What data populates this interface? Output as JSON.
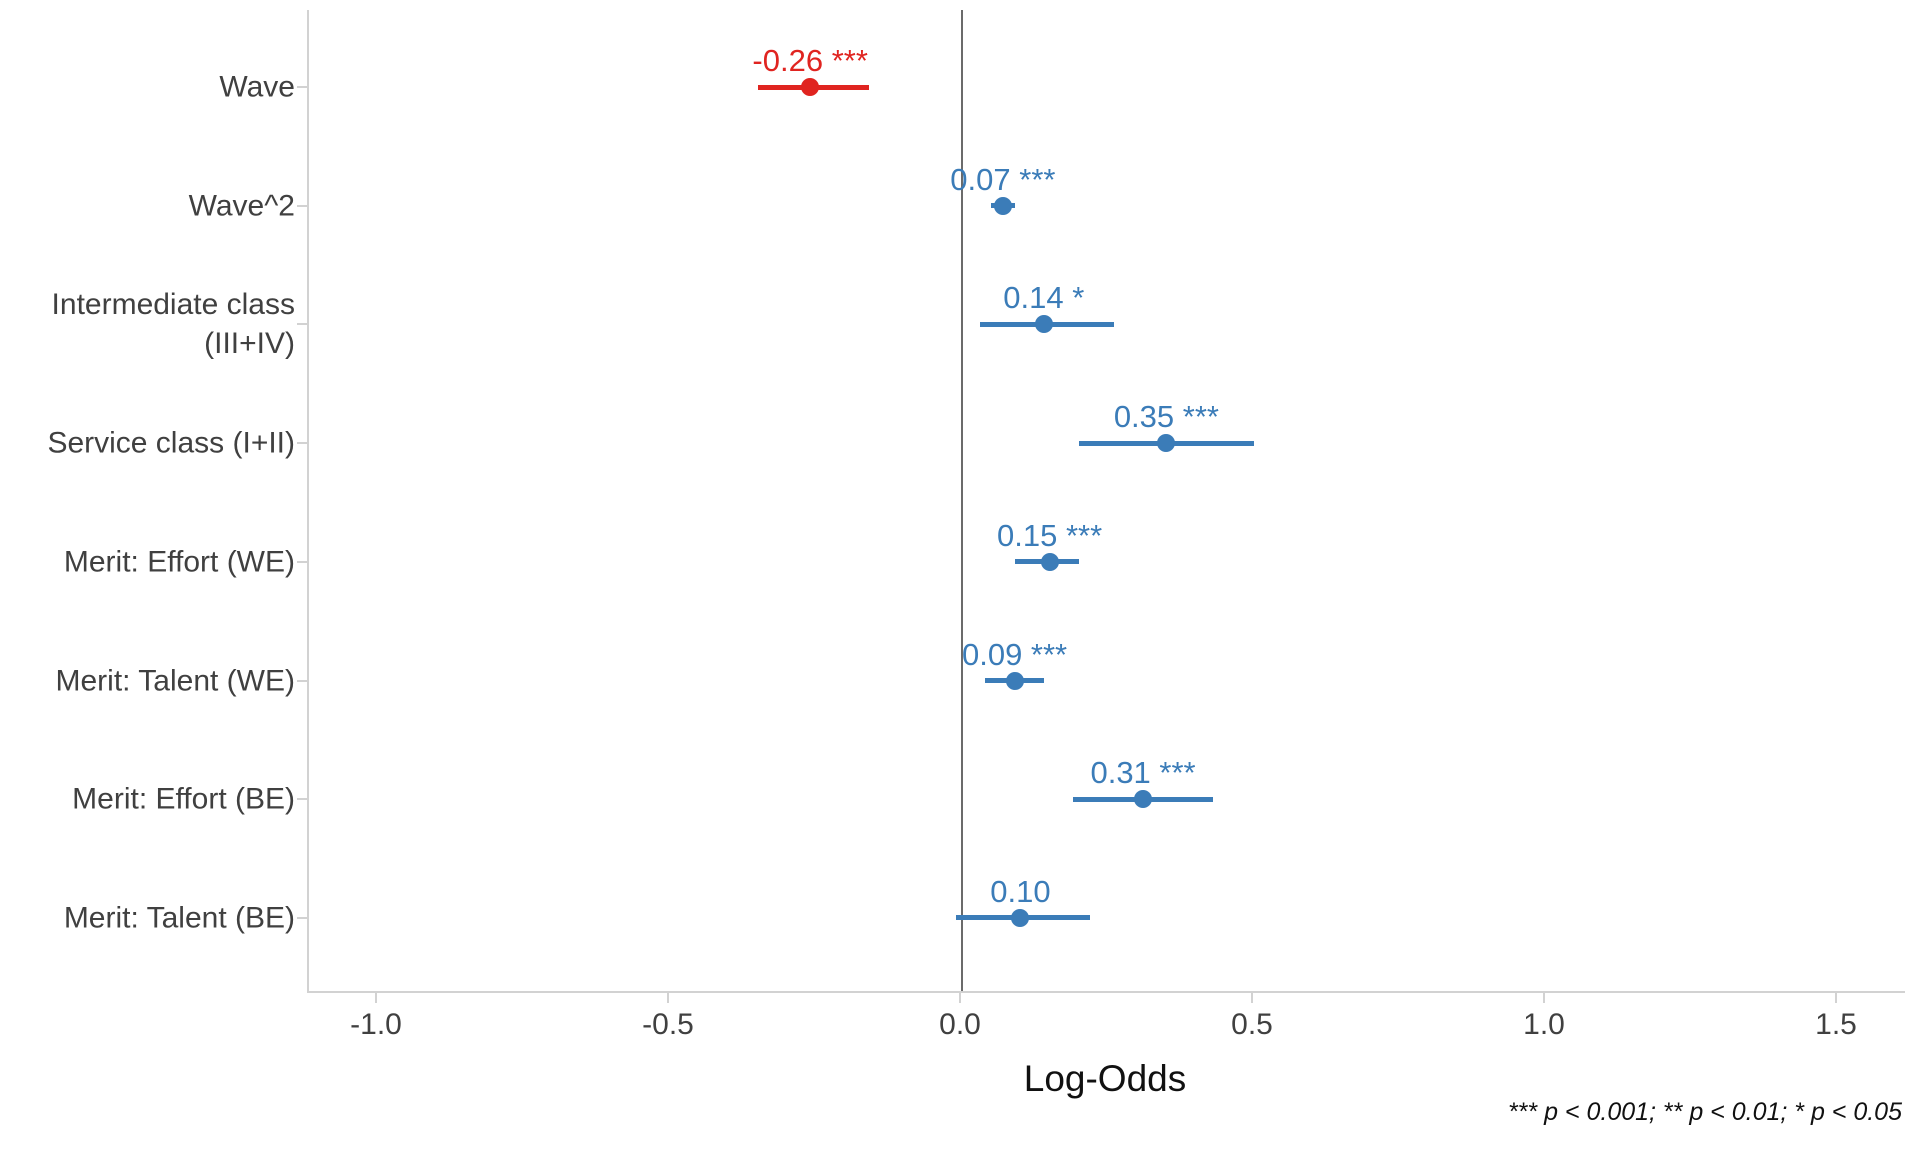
{
  "chart_data": {
    "type": "scatter",
    "subtype": "forest-coefficient-plot",
    "title": "",
    "xlabel": "Log-Odds",
    "ylabel": "",
    "xlim": [
      -1.12,
      1.62
    ],
    "x_ticks": [
      {
        "value": -1.0,
        "label": "-1.0"
      },
      {
        "value": -0.5,
        "label": "-0.5"
      },
      {
        "value": 0.0,
        "label": "0.0"
      },
      {
        "value": 0.5,
        "label": "0.5"
      },
      {
        "value": 1.0,
        "label": "1.0"
      },
      {
        "value": 1.5,
        "label": "1.5"
      }
    ],
    "zero_reference_line": 0.0,
    "grid": "off",
    "legend": "none",
    "rows": [
      {
        "term": "Wave",
        "estimate": -0.26,
        "ci_low": -0.35,
        "ci_high": -0.16,
        "label": "-0.26",
        "stars": "***",
        "color": "#e02420"
      },
      {
        "term": "Wave^2",
        "estimate": 0.07,
        "ci_low": 0.05,
        "ci_high": 0.09,
        "label": "0.07",
        "stars": "***",
        "color": "#3b7cb8"
      },
      {
        "term": "Intermediate class\n(III+IV)",
        "estimate": 0.14,
        "ci_low": 0.03,
        "ci_high": 0.26,
        "label": "0.14",
        "stars": "*",
        "color": "#3b7cb8"
      },
      {
        "term": "Service class (I+II)",
        "estimate": 0.35,
        "ci_low": 0.2,
        "ci_high": 0.5,
        "label": "0.35",
        "stars": "***",
        "color": "#3b7cb8"
      },
      {
        "term": "Merit: Effort (WE)",
        "estimate": 0.15,
        "ci_low": 0.09,
        "ci_high": 0.2,
        "label": "0.15",
        "stars": "***",
        "color": "#3b7cb8"
      },
      {
        "term": "Merit: Talent (WE)",
        "estimate": 0.09,
        "ci_low": 0.04,
        "ci_high": 0.14,
        "label": "0.09",
        "stars": "***",
        "color": "#3b7cb8"
      },
      {
        "term": "Merit: Effort (BE)",
        "estimate": 0.31,
        "ci_low": 0.19,
        "ci_high": 0.43,
        "label": "0.31",
        "stars": "***",
        "color": "#3b7cb8"
      },
      {
        "term": "Merit: Talent (BE)",
        "estimate": 0.1,
        "ci_low": -0.01,
        "ci_high": 0.22,
        "label": "0.10",
        "stars": "",
        "color": "#3b7cb8"
      }
    ],
    "footnote": "*** p < 0.001; ** p < 0.01; * p < 0.05",
    "colors": {
      "negative_coefficient": "#e02420",
      "positive_coefficient": "#3b7cb8",
      "axis_text": "#404040",
      "axis_line": "#d2d2d2",
      "zero_line": "#6b6b6b",
      "background": "#ffffff"
    }
  }
}
